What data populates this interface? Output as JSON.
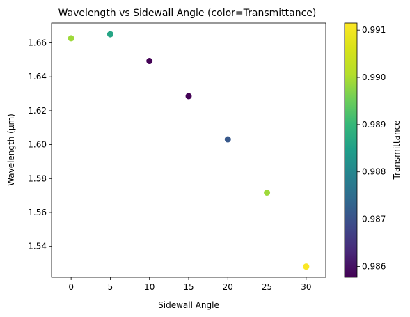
{
  "chart_data": {
    "type": "scatter",
    "title": "Wavelength vs Sidewall Angle (color=Transmittance)",
    "xlabel": "Sidewall Angle",
    "ylabel": "Wavelength (µm)",
    "xlim": [
      -2.5,
      32.5
    ],
    "ylim": [
      1.5218,
      1.6717
    ],
    "x_ticks": [
      0,
      5,
      10,
      15,
      20,
      25,
      30
    ],
    "y_ticks": [
      1.54,
      1.56,
      1.58,
      1.6,
      1.62,
      1.64,
      1.66
    ],
    "colorbar": {
      "label": "Transmittance",
      "colormap": "viridis",
      "range": [
        0.98577,
        0.99115
      ],
      "ticks": [
        0.986,
        0.987,
        0.988,
        0.989,
        0.99,
        0.991
      ]
    },
    "points": [
      {
        "x": 0,
        "y": 1.6627,
        "c": 0.9899
      },
      {
        "x": 5,
        "y": 1.6651,
        "c": 0.9886
      },
      {
        "x": 10,
        "y": 1.6493,
        "c": 0.9858
      },
      {
        "x": 15,
        "y": 1.6286,
        "c": 0.9858
      },
      {
        "x": 20,
        "y": 1.6031,
        "c": 0.9871
      },
      {
        "x": 25,
        "y": 1.5717,
        "c": 0.9899
      },
      {
        "x": 30,
        "y": 1.5281,
        "c": 0.9911
      }
    ],
    "grid": false
  }
}
